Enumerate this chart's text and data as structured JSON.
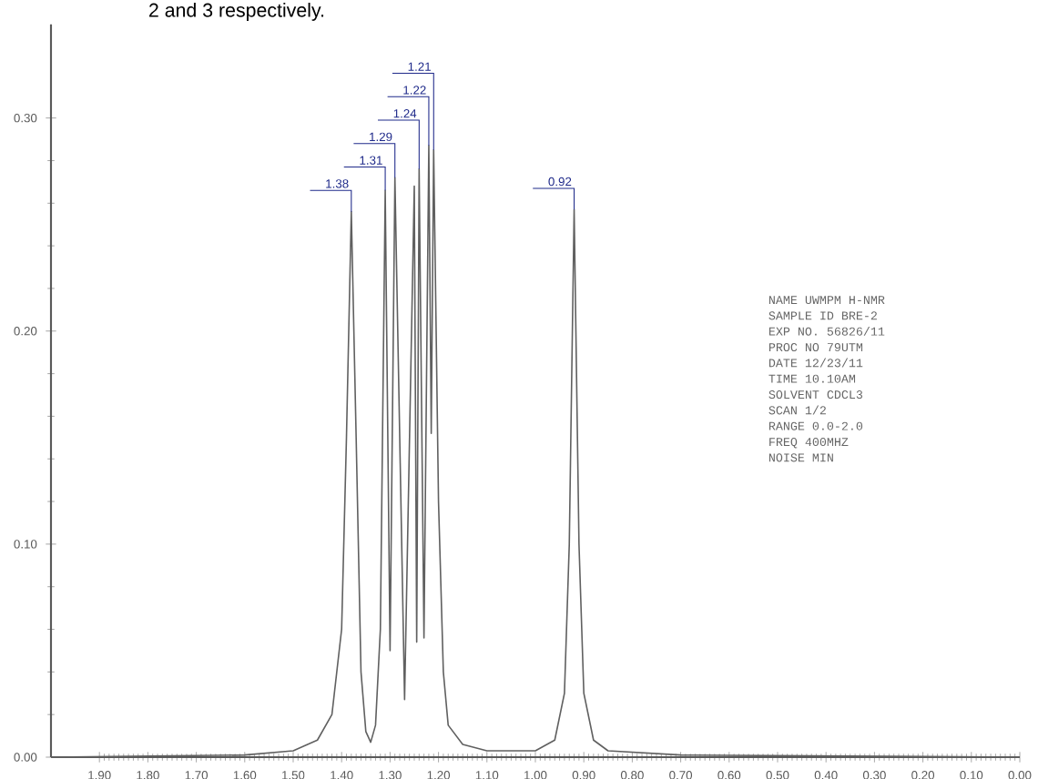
{
  "chart_data": {
    "type": "line",
    "xlim": [
      2.0,
      0.0
    ],
    "ylim": [
      0,
      0.344
    ],
    "xticks": [
      {
        "value": 1.9,
        "label": "1.90"
      },
      {
        "value": 1.8,
        "label": "1.80"
      },
      {
        "value": 1.7,
        "label": "1.70"
      },
      {
        "value": 1.6,
        "label": "1.60"
      },
      {
        "value": 1.5,
        "label": "1.50"
      },
      {
        "value": 1.4,
        "label": "1.40"
      },
      {
        "value": 1.3,
        "label": "1.30"
      },
      {
        "value": 1.2,
        "label": "1.20"
      },
      {
        "value": 1.1,
        "label": "1.10"
      },
      {
        "value": 1.0,
        "label": "1.00"
      },
      {
        "value": 0.9,
        "label": "0.90"
      },
      {
        "value": 0.8,
        "label": "0.80"
      },
      {
        "value": 0.7,
        "label": "0.70"
      },
      {
        "value": 0.6,
        "label": "0.60"
      },
      {
        "value": 0.5,
        "label": "0.50"
      },
      {
        "value": 0.4,
        "label": "0.40"
      },
      {
        "value": 0.3,
        "label": "0.30"
      },
      {
        "value": 0.2,
        "label": "0.20"
      },
      {
        "value": 0.1,
        "label": "0.10"
      },
      {
        "value": 0.0,
        "label": "0.00"
      }
    ],
    "yticks": [
      {
        "value": 0,
        "label": "0.00"
      },
      {
        "value": 0.1,
        "label": "0.10"
      },
      {
        "value": 0.2,
        "label": "0.20"
      },
      {
        "value": 0.3,
        "label": "0.30"
      }
    ],
    "grid": false,
    "legend": false,
    "marker": "none",
    "line_style": "solid",
    "series": [
      {
        "color": "#606060",
        "x": [
          2.0,
          1.6,
          1.5,
          1.45,
          1.42,
          1.4,
          1.39,
          1.38,
          1.37,
          1.36,
          1.35,
          1.34,
          1.33,
          1.32,
          1.31,
          1.3,
          1.29,
          1.27,
          1.25,
          1.245,
          1.24,
          1.23,
          1.22,
          1.215,
          1.21,
          1.2,
          1.19,
          1.18,
          1.15,
          1.1,
          1.0,
          0.96,
          0.94,
          0.93,
          0.92,
          0.91,
          0.9,
          0.88,
          0.85,
          0.7,
          0.0
        ],
        "values": [
          0.0,
          0.001,
          0.003,
          0.008,
          0.02,
          0.06,
          0.15,
          0.256,
          0.15,
          0.04,
          0.012,
          0.007,
          0.015,
          0.06,
          0.266,
          0.05,
          0.272,
          0.027,
          0.268,
          0.054,
          0.276,
          0.056,
          0.287,
          0.152,
          0.285,
          0.12,
          0.04,
          0.015,
          0.006,
          0.003,
          0.003,
          0.008,
          0.03,
          0.1,
          0.257,
          0.1,
          0.03,
          0.008,
          0.003,
          0.001,
          0.0
        ]
      }
    ],
    "annotations": [
      {
        "text": "1.38",
        "x": 1.38,
        "y": 0.256
      },
      {
        "text": "1.31",
        "x": 1.31,
        "y": 0.266
      },
      {
        "text": "1.29",
        "x": 1.29,
        "y": 0.272
      },
      {
        "text": "1.24",
        "x": 1.24,
        "y": 0.276
      },
      {
        "text": "1.22",
        "x": 1.22,
        "y": 0.287
      },
      {
        "text": "1.21",
        "x": 1.21,
        "y": 0.285
      },
      {
        "text": "0.92",
        "x": 0.92,
        "y": 0.257
      },
      "2 and 3 respectively.",
      "NAME UWMPM H-NMR",
      "SAMPLE ID BRE-2",
      "EXP NO. 56826/11",
      "PROC NO 79UTM",
      "DATE 12/23/11",
      "TIME 10.10AM",
      "SOLVENT CDCL3",
      "SCAN 1/2",
      "RANGE 0.0-2.0",
      "FREQ 400MHZ",
      "NOISE MIN"
    ]
  }
}
